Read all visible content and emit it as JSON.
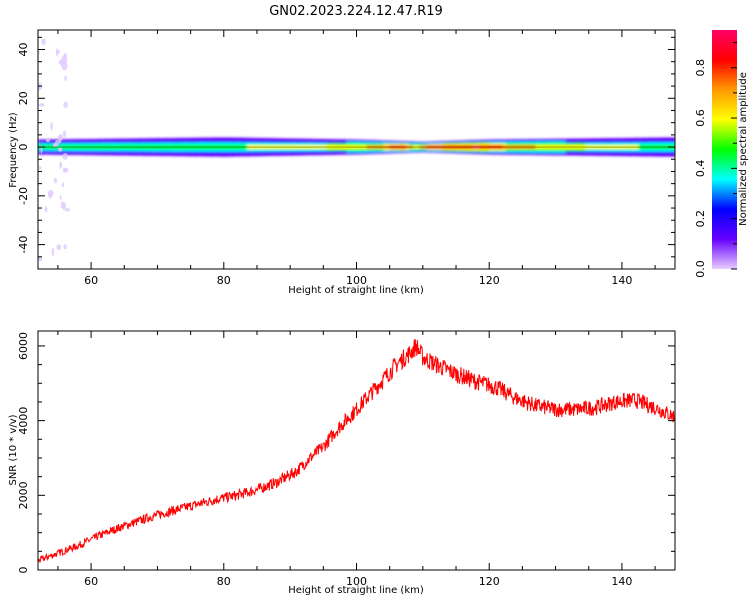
{
  "figure": {
    "title": "GN02.2023.224.12.47.R19"
  },
  "chart_data": [
    {
      "type": "heatmap",
      "xlabel": "Height of straight line (km)",
      "ylabel": "Frequency (Hz)",
      "xlim": [
        52,
        148
      ],
      "ylim": [
        -50,
        48
      ],
      "xticks": [
        60,
        80,
        100,
        120,
        140
      ],
      "yticks": [
        -40,
        -20,
        0,
        20,
        40
      ],
      "colorbar": {
        "label": "Normalized spectral amplitude",
        "range": [
          0.0,
          0.95
        ],
        "ticks": [
          0.0,
          0.2,
          0.4,
          0.6,
          0.8
        ],
        "colormap": [
          "#e8ccff",
          "#6600ff",
          "#0000ff",
          "#00ffff",
          "#00ff00",
          "#ffff00",
          "#ff9900",
          "#ff0000",
          "#ff0066"
        ]
      },
      "band": {
        "center_frequency_hz": 0,
        "half_width_hz_by_height": [
          [
            52,
            3
          ],
          [
            80,
            4
          ],
          [
            100,
            3
          ],
          [
            110,
            2
          ],
          [
            120,
            3
          ],
          [
            148,
            4
          ]
        ],
        "peak_amplitude_by_height": [
          [
            52,
            0.45
          ],
          [
            70,
            0.5
          ],
          [
            90,
            0.55
          ],
          [
            100,
            0.6
          ],
          [
            107,
            0.85
          ],
          [
            109,
            0.6
          ],
          [
            111,
            0.8
          ],
          [
            118,
            0.9
          ],
          [
            124,
            0.7
          ],
          [
            130,
            0.6
          ],
          [
            140,
            0.55
          ],
          [
            148,
            0.5
          ]
        ]
      }
    },
    {
      "type": "line",
      "xlabel": "Height of straight line (km)",
      "ylabel": "SNR (10 * v/v)",
      "xlim": [
        52,
        148
      ],
      "ylim": [
        0,
        6400
      ],
      "xticks": [
        60,
        80,
        100,
        120,
        140
      ],
      "yticks": [
        0,
        2000,
        4000,
        6000
      ],
      "series_color": "#ff0000",
      "series": [
        {
          "x": [
            52,
            55,
            58,
            61,
            64,
            67,
            70,
            73,
            76,
            79,
            82,
            85,
            88,
            91,
            93,
            95,
            97,
            100,
            103,
            106,
            108,
            109,
            110,
            112,
            115,
            118,
            121,
            124,
            127,
            130,
            133,
            136,
            139,
            142,
            145,
            148
          ],
          "values": [
            250,
            450,
            650,
            900,
            1120,
            1300,
            1480,
            1620,
            1760,
            1900,
            2000,
            2150,
            2350,
            2650,
            3000,
            3300,
            3750,
            4300,
            4900,
            5500,
            5800,
            6000,
            5700,
            5500,
            5250,
            5050,
            4900,
            4600,
            4400,
            4300,
            4300,
            4350,
            4500,
            4550,
            4350,
            4100
          ]
        }
      ]
    }
  ]
}
